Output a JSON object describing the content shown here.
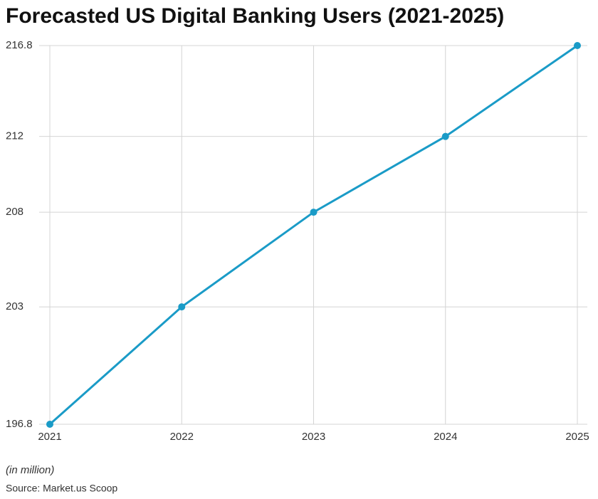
{
  "chart_data": {
    "type": "line",
    "title": "Forecasted US Digital Banking Users (2021-2025)",
    "categories": [
      "2021",
      "2022",
      "2023",
      "2024",
      "2025"
    ],
    "values": [
      196.8,
      203,
      208,
      212,
      216.8
    ],
    "color": "#1a9bc7",
    "ylim": [
      196.8,
      216.8
    ],
    "yticks": [
      196.8,
      203,
      208,
      212,
      216.8
    ],
    "grid": true,
    "note": "(in million)",
    "source": "Source: Market.us Scoop"
  }
}
